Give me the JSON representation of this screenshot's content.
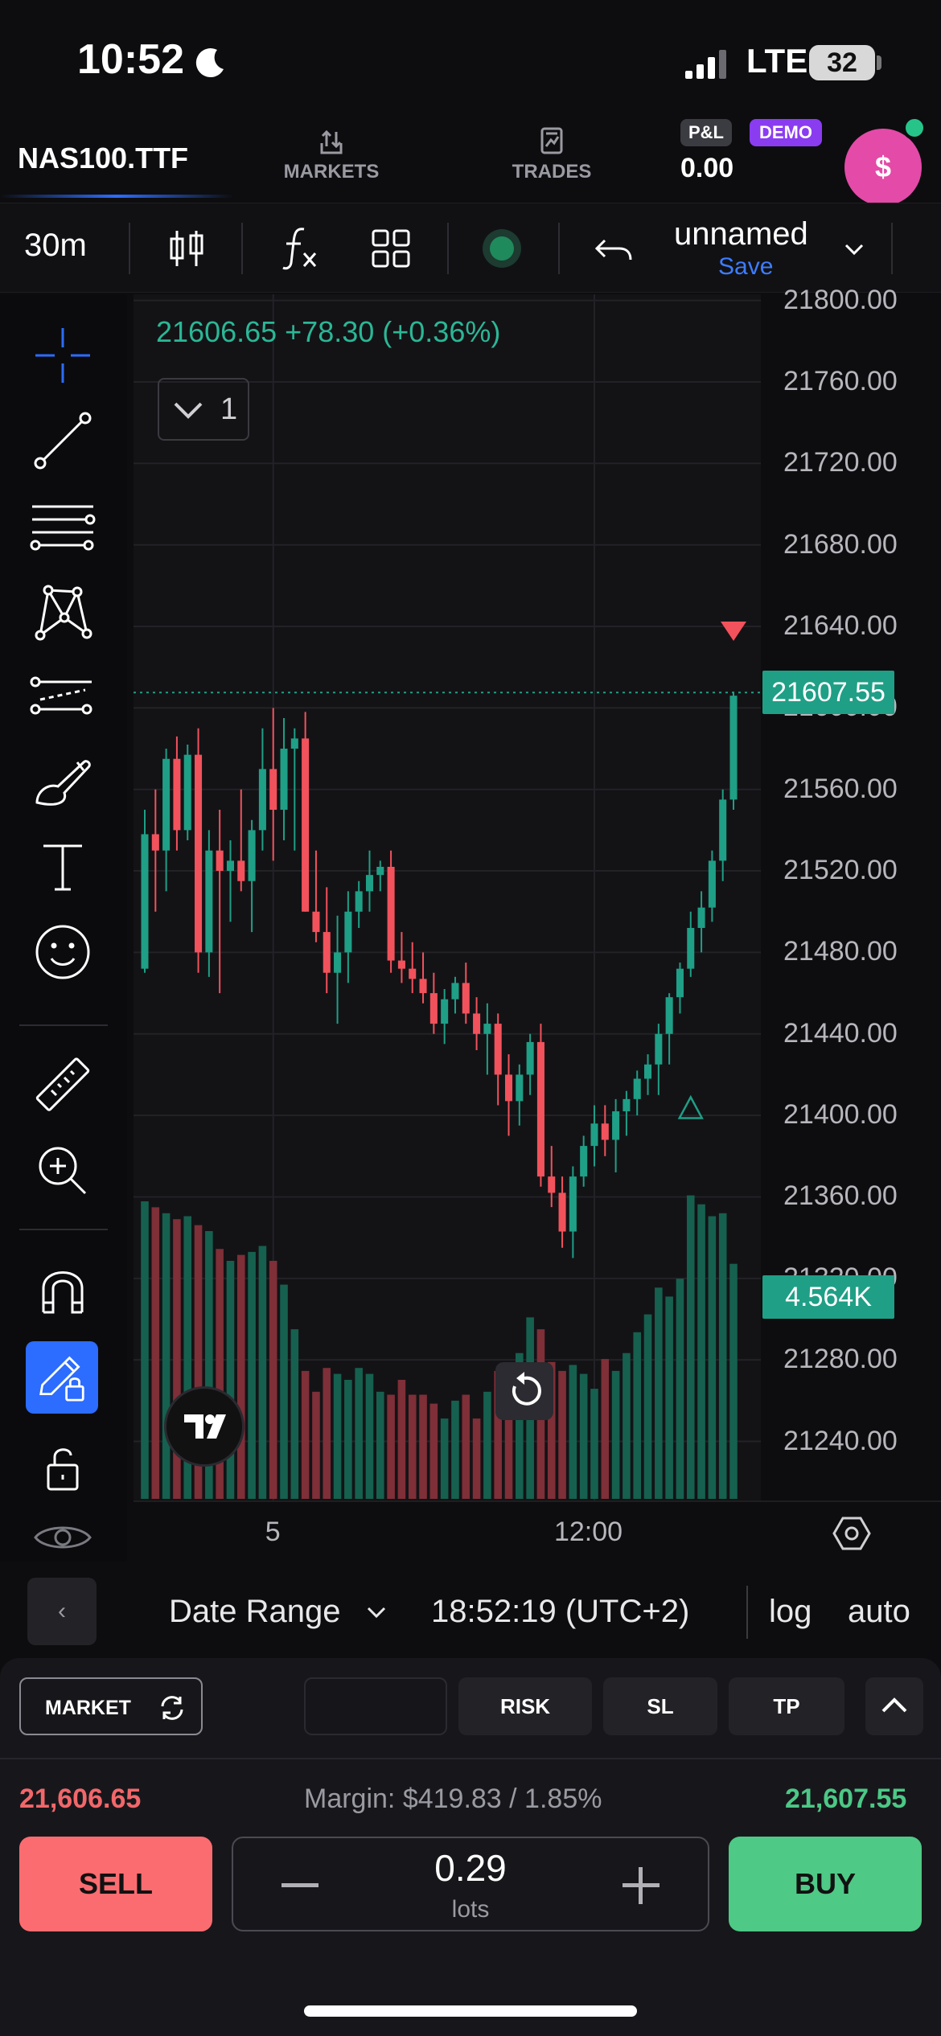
{
  "status_bar": {
    "time": "10:52",
    "network": "LTE",
    "battery": "32"
  },
  "header": {
    "symbol": "NAS100.TTF",
    "tabs": [
      {
        "label": "MARKETS",
        "icon": "markets-icon"
      },
      {
        "label": "TRADES",
        "icon": "trades-icon"
      }
    ],
    "pnl_label": "P&L",
    "demo_label": "DEMO",
    "pnl_value": "0.00",
    "avatar_symbol": "$"
  },
  "chart_toolbar": {
    "interval": "30m",
    "layout_name": "unnamed",
    "save_label": "Save"
  },
  "legend": {
    "text": "21606.65 +78.30 (+0.36%)",
    "collapse_count": "1"
  },
  "price_tags": {
    "last_price": "21607.55",
    "volume": "4.564K"
  },
  "range_bar": {
    "date_range_label": "Date Range",
    "time": "18:52:19 (UTC+2)",
    "log_label": "log",
    "auto_label": "auto",
    "back_label": "‹"
  },
  "order_panel": {
    "order_type": "MARKET",
    "risk_label": "RISK",
    "sl_label": "SL",
    "tp_label": "TP",
    "bid": "21,606.65",
    "margin": "Margin: $419.83 / 1.85%",
    "ask": "21,607.55",
    "sell_label": "SELL",
    "buy_label": "BUY",
    "quantity": "0.29",
    "quantity_unit": "lots"
  },
  "colors": {
    "up": "#1f9f86",
    "down": "#f2525c",
    "accent": "#2c6cff"
  },
  "chart_data": {
    "type": "candlestick",
    "title": "",
    "y_ticks": [
      "21800.00",
      "21760.00",
      "21720.00",
      "21680.00",
      "21640.00",
      "21600.00",
      "21560.00",
      "21520.00",
      "21480.00",
      "21440.00",
      "21400.00",
      "21360.00",
      "21320.00",
      "21280.00",
      "21240.00"
    ],
    "ylim": [
      21211,
      21803
    ],
    "x_ticks": [
      "5",
      "12:00"
    ],
    "last_price": 21607.55,
    "candles": [
      [
        21472,
        21550,
        21470,
        21538
      ],
      [
        21538,
        21560,
        21500,
        21530
      ],
      [
        21530,
        21580,
        21510,
        21575
      ],
      [
        21575,
        21586,
        21530,
        21540
      ],
      [
        21540,
        21582,
        21535,
        21577
      ],
      [
        21577,
        21590,
        21470,
        21480
      ],
      [
        21480,
        21540,
        21468,
        21530
      ],
      [
        21530,
        21550,
        21460,
        21520
      ],
      [
        21520,
        21535,
        21495,
        21525
      ],
      [
        21525,
        21560,
        21510,
        21515
      ],
      [
        21515,
        21545,
        21490,
        21540
      ],
      [
        21540,
        21590,
        21530,
        21570
      ],
      [
        21570,
        21600,
        21525,
        21550
      ],
      [
        21550,
        21595,
        21535,
        21580
      ],
      [
        21580,
        21590,
        21530,
        21585
      ],
      [
        21585,
        21598,
        21500,
        21500
      ],
      [
        21500,
        21530,
        21485,
        21490
      ],
      [
        21490,
        21512,
        21460,
        21470
      ],
      [
        21470,
        21498,
        21445,
        21480
      ],
      [
        21480,
        21510,
        21465,
        21500
      ],
      [
        21500,
        21515,
        21492,
        21510
      ],
      [
        21510,
        21530,
        21500,
        21518
      ],
      [
        21518,
        21525,
        21510,
        21522
      ],
      [
        21522,
        21530,
        21470,
        21476
      ],
      [
        21476,
        21490,
        21465,
        21472
      ],
      [
        21472,
        21485,
        21460,
        21467
      ],
      [
        21467,
        21480,
        21455,
        21460
      ],
      [
        21460,
        21470,
        21440,
        21445
      ],
      [
        21445,
        21462,
        21435,
        21457
      ],
      [
        21457,
        21468,
        21450,
        21465
      ],
      [
        21465,
        21475,
        21445,
        21450
      ],
      [
        21450,
        21458,
        21432,
        21440
      ],
      [
        21440,
        21455,
        21420,
        21445
      ],
      [
        21445,
        21450,
        21405,
        21420
      ],
      [
        21420,
        21430,
        21390,
        21407
      ],
      [
        21407,
        21425,
        21395,
        21420
      ],
      [
        21420,
        21440,
        21410,
        21436
      ],
      [
        21436,
        21445,
        21365,
        21370
      ],
      [
        21370,
        21385,
        21355,
        21362
      ],
      [
        21362,
        21370,
        21335,
        21343
      ],
      [
        21343,
        21375,
        21330,
        21370
      ],
      [
        21370,
        21390,
        21365,
        21385
      ],
      [
        21385,
        21405,
        21375,
        21396
      ],
      [
        21396,
        21405,
        21380,
        21388
      ],
      [
        21388,
        21408,
        21372,
        21402
      ],
      [
        21402,
        21412,
        21390,
        21408
      ],
      [
        21408,
        21422,
        21400,
        21418
      ],
      [
        21418,
        21430,
        21410,
        21425
      ],
      [
        21425,
        21445,
        21410,
        21440
      ],
      [
        21440,
        21460,
        21425,
        21458
      ],
      [
        21458,
        21475,
        21450,
        21472
      ],
      [
        21472,
        21500,
        21468,
        21492
      ],
      [
        21492,
        21510,
        21480,
        21502
      ],
      [
        21502,
        21530,
        21495,
        21525
      ],
      [
        21525,
        21560,
        21515,
        21555
      ],
      [
        21555,
        21608,
        21550,
        21606
      ]
    ],
    "volume": [
      1.0,
      0.98,
      0.96,
      0.94,
      0.95,
      0.92,
      0.9,
      0.84,
      0.8,
      0.82,
      0.83,
      0.85,
      0.8,
      0.72,
      0.57,
      0.43,
      0.36,
      0.44,
      0.42,
      0.4,
      0.44,
      0.42,
      0.36,
      0.35,
      0.4,
      0.35,
      0.35,
      0.32,
      0.27,
      0.33,
      0.35,
      0.27,
      0.36,
      0.43,
      0.4,
      0.49,
      0.61,
      0.57,
      0.46,
      0.43,
      0.45,
      0.42,
      0.37,
      0.47,
      0.43,
      0.49,
      0.56,
      0.62,
      0.71,
      0.68,
      0.74,
      1.02,
      0.99,
      0.95,
      0.96,
      0.79
    ],
    "markers": [
      {
        "type": "sell",
        "index": 54
      },
      {
        "type": "buy",
        "index": 51
      }
    ]
  }
}
